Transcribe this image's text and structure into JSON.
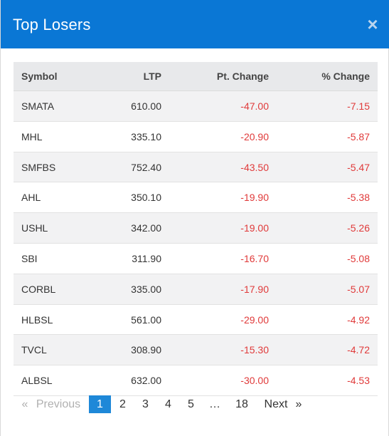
{
  "modal": {
    "title": "Top Losers",
    "close_glyph": "×"
  },
  "table": {
    "headers": {
      "symbol": "Symbol",
      "ltp": "LTP",
      "pt_change": "Pt. Change",
      "pct_change": "% Change"
    },
    "rows": [
      {
        "symbol": "SMATA",
        "ltp": "610.00",
        "pt_change": "-47.00",
        "pct_change": "-7.15"
      },
      {
        "symbol": "MHL",
        "ltp": "335.10",
        "pt_change": "-20.90",
        "pct_change": "-5.87"
      },
      {
        "symbol": "SMFBS",
        "ltp": "752.40",
        "pt_change": "-43.50",
        "pct_change": "-5.47"
      },
      {
        "symbol": "AHL",
        "ltp": "350.10",
        "pt_change": "-19.90",
        "pct_change": "-5.38"
      },
      {
        "symbol": "USHL",
        "ltp": "342.00",
        "pt_change": "-19.00",
        "pct_change": "-5.26"
      },
      {
        "symbol": "SBI",
        "ltp": "311.90",
        "pt_change": "-16.70",
        "pct_change": "-5.08"
      },
      {
        "symbol": "CORBL",
        "ltp": "335.00",
        "pt_change": "-17.90",
        "pct_change": "-5.07"
      },
      {
        "symbol": "HLBSL",
        "ltp": "561.00",
        "pt_change": "-29.00",
        "pct_change": "-4.92"
      },
      {
        "symbol": "TVCL",
        "ltp": "308.90",
        "pt_change": "-15.30",
        "pct_change": "-4.72"
      },
      {
        "symbol": "ALBSL",
        "ltp": "632.00",
        "pt_change": "-30.00",
        "pct_change": "-4.53"
      }
    ],
    "negative_color": "#e03a3a"
  },
  "pagination": {
    "prev_arrow": "«",
    "prev_label": "Previous",
    "pages": [
      "1",
      "2",
      "3",
      "4",
      "5"
    ],
    "ellipsis": "…",
    "last_page": "18",
    "next_label": "Next",
    "next_arrow": "»",
    "active_page": "1"
  },
  "colors": {
    "header_bg": "#0a77d5",
    "active_page_bg": "#1e88d8"
  }
}
